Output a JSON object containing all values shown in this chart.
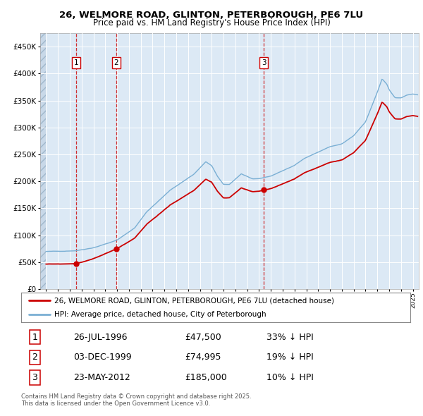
{
  "title_line1": "26, WELMORE ROAD, GLINTON, PETERBOROUGH, PE6 7LU",
  "title_line2": "Price paid vs. HM Land Registry's House Price Index (HPI)",
  "legend_label_red": "26, WELMORE ROAD, GLINTON, PETERBOROUGH, PE6 7LU (detached house)",
  "legend_label_blue": "HPI: Average price, detached house, City of Peterborough",
  "sale_date1": "26-JUL-1996",
  "sale_price1": "£47,500",
  "sale_hpi1": "33% ↓ HPI",
  "sale_x1": 1996.56,
  "sale_y1": 47500,
  "sale_date2": "03-DEC-1999",
  "sale_price2": "£74,995",
  "sale_hpi2": "19% ↓ HPI",
  "sale_x2": 1999.92,
  "sale_y2": 74995,
  "sale_date3": "23-MAY-2012",
  "sale_price3": "£185,000",
  "sale_hpi3": "10% ↓ HPI",
  "sale_x3": 2012.39,
  "sale_y3": 185000,
  "footer": "Contains HM Land Registry data © Crown copyright and database right 2025.\nThis data is licensed under the Open Government Licence v3.0.",
  "background_color": "#dce9f5",
  "red_color": "#cc0000",
  "blue_color": "#7aafd4",
  "vline_color": "#cc0000",
  "ylim": [
    0,
    475000
  ],
  "xlim_start": 1993.5,
  "xlim_end": 2025.5
}
